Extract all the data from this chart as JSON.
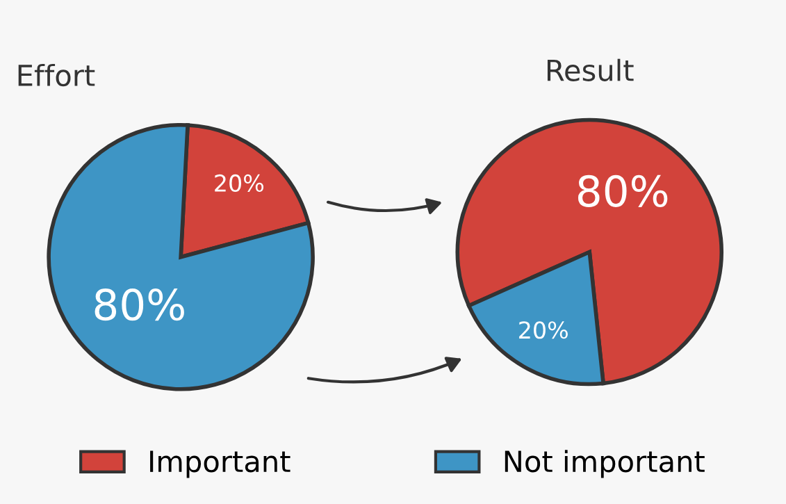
{
  "chart_data": [
    {
      "type": "pie",
      "title": "Effort",
      "categories": [
        "Important",
        "Not important"
      ],
      "values": [
        20,
        80
      ],
      "value_labels": [
        "20%",
        "80%"
      ],
      "colors": [
        "#d2433b",
        "#3e95c5"
      ],
      "legend": "bottom"
    },
    {
      "type": "pie",
      "title": "Result",
      "categories": [
        null,
        null
      ],
      "values": [
        80,
        20
      ],
      "value_labels": [
        "80%",
        "20%"
      ],
      "colors": [
        "#d2433b",
        "#3e95c5"
      ]
    }
  ]
}
